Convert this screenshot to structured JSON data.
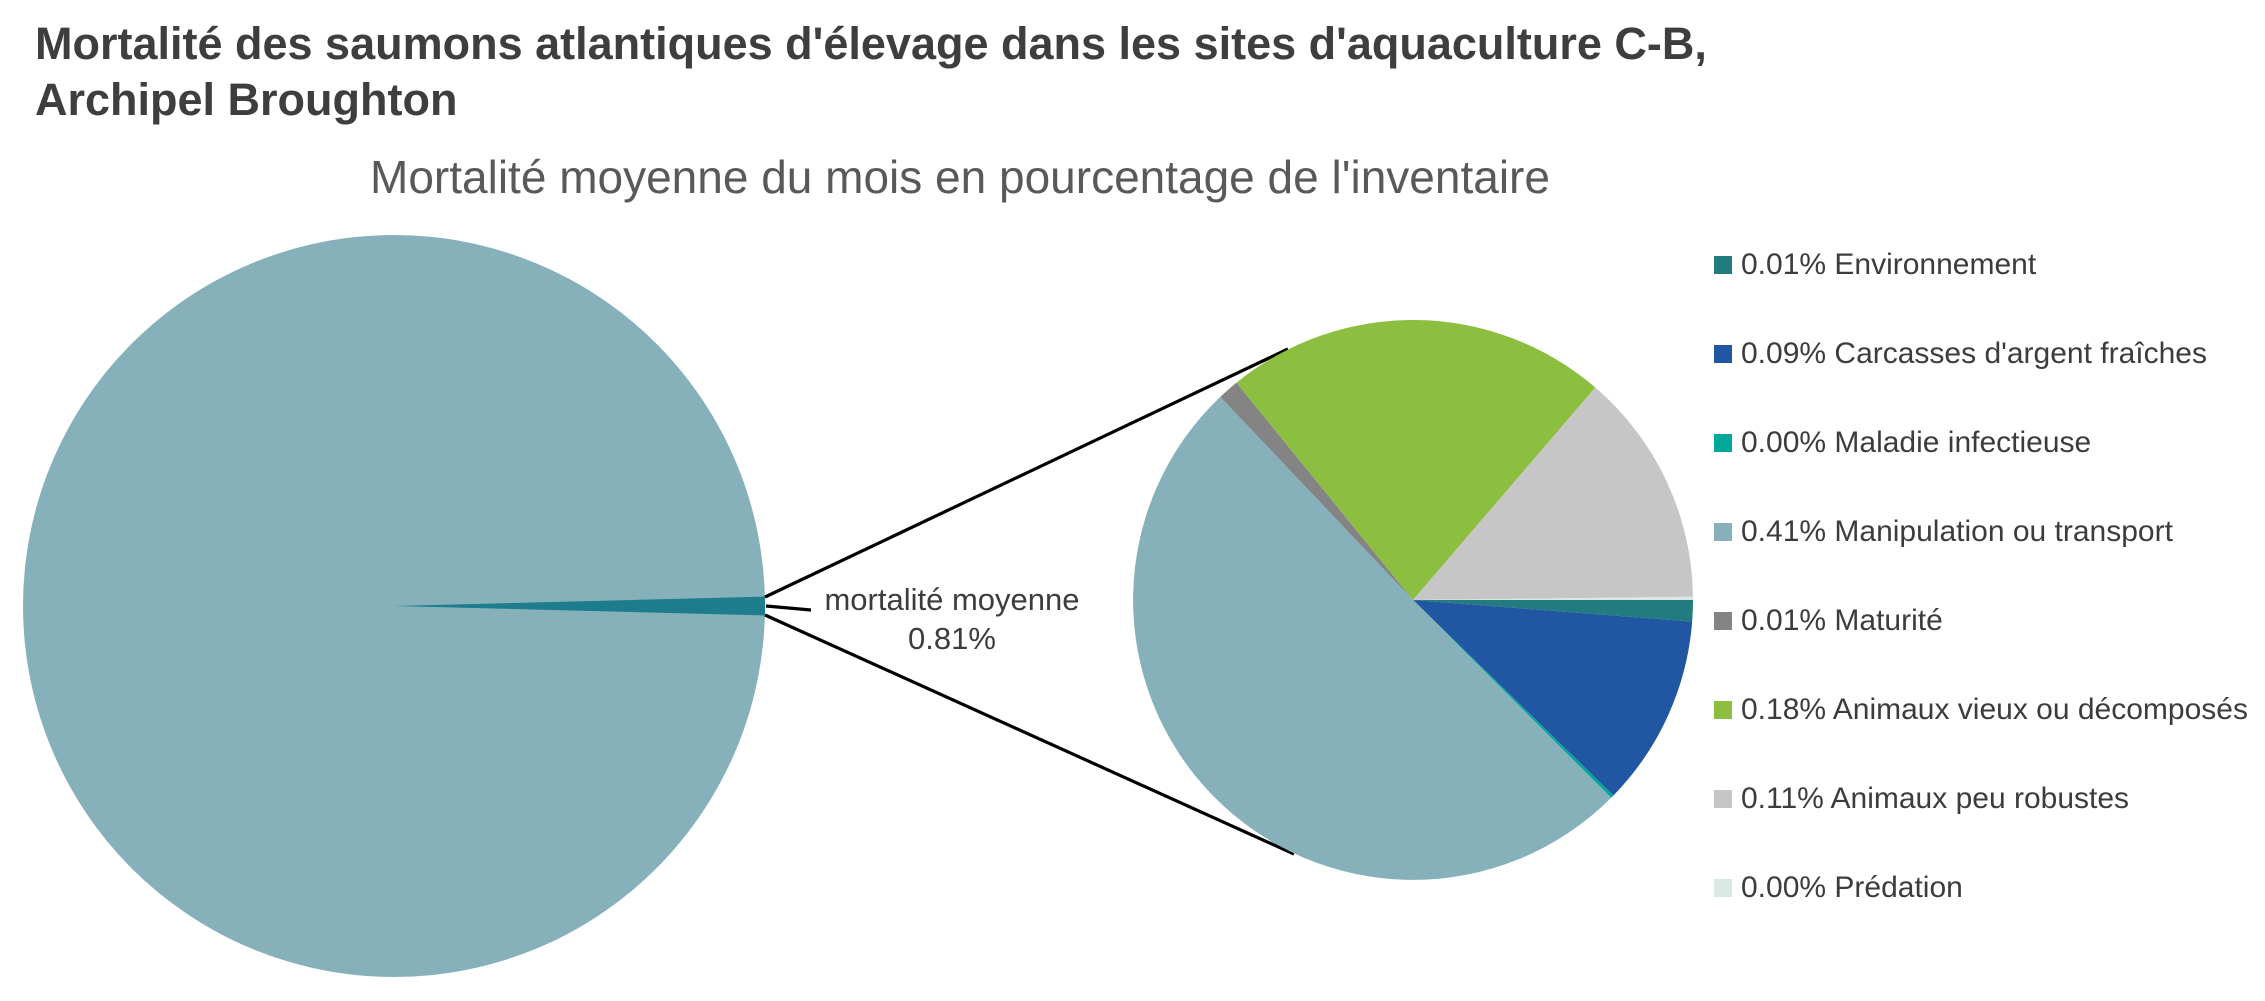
{
  "title": "Mortalité des saumons atlantiques d'élevage dans les sites d'aquaculture C-B,\nArchipel Broughton",
  "chart_data": {
    "type": "pie",
    "variant": "pie-of-pie",
    "title": "Mortalité moyenne du mois en pourcentage de l'inventaire",
    "legend_position": "right",
    "callout_label": "mortalité moyenne",
    "callout_value": "0.81%",
    "total_mortality_pct": 0.81,
    "main_pie": {
      "body_color": "#86B1BA",
      "highlight_color": "#1D7D8C",
      "highlight_value_pct": 0.81
    },
    "categories": [
      {
        "display": "0.01%",
        "value_pct": 0.01,
        "label": "Environnement",
        "color": "#217B7F"
      },
      {
        "display": "0.09%",
        "value_pct": 0.09,
        "label": "Carcasses d'argent fraîches",
        "color": "#2156A3"
      },
      {
        "display": "0.00%",
        "value_pct": 0.0,
        "label": "Maladie infectieuse",
        "color": "#00A79B"
      },
      {
        "display": "0.41%",
        "value_pct": 0.41,
        "label": "Manipulation ou transport",
        "color": "#86B1BA"
      },
      {
        "display": "0.01%",
        "value_pct": 0.01,
        "label": "Maturité",
        "color": "#848484"
      },
      {
        "display": "0.18%",
        "value_pct": 0.18,
        "label": "Animaux vieux ou décomposés",
        "color": "#8CBF3F"
      },
      {
        "display": "0.11%",
        "value_pct": 0.11,
        "label": "Animaux peu robustes",
        "color": "#C6C6C6"
      },
      {
        "display": "0.00%",
        "value_pct": 0.0,
        "label": "Prédation",
        "color": "#D9E8E4"
      }
    ]
  }
}
